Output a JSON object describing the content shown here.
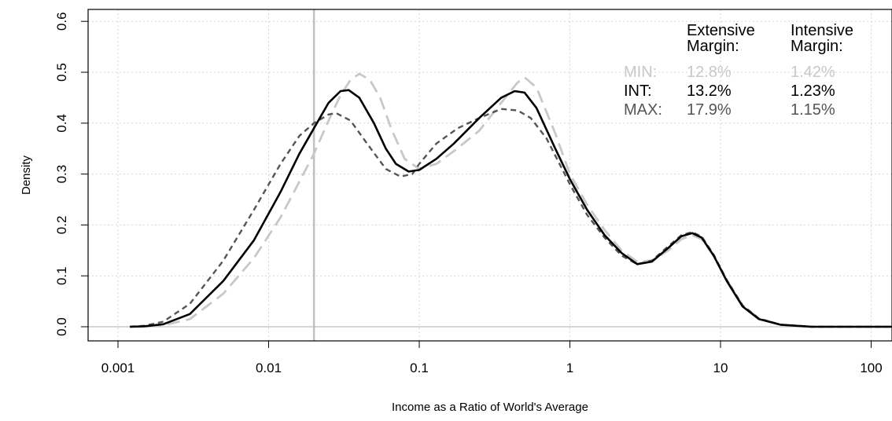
{
  "chart_data": {
    "type": "line",
    "xlabel": "Income as a Ratio of World's Average",
    "ylabel": "Density",
    "x_scale": "log10",
    "xlim": [
      0.001,
      140
    ],
    "ylim": [
      0,
      0.6
    ],
    "x_ticks": [
      0.001,
      0.01,
      0.1,
      1,
      10,
      100
    ],
    "x_tick_labels": [
      "0.001",
      "0.01",
      "0.1",
      "1",
      "10",
      "100"
    ],
    "y_ticks": [
      0,
      0.1,
      0.2,
      0.3,
      0.4,
      0.5,
      0.6
    ],
    "y_tick_labels": [
      "0.0",
      "0.1",
      "0.2",
      "0.3",
      "0.4",
      "0.5",
      "0.6"
    ],
    "grid": true,
    "reference_vline_x": 0.02,
    "reference_hline_y": 0,
    "legend_placement": "top-right",
    "legend": {
      "headers": [
        "Extensive\nMargin:",
        "Intensive\nMargin:"
      ],
      "rows": [
        {
          "label": "MIN:",
          "extensive": "12.8%",
          "intensive": "1.42%",
          "color": "#c8c8c8"
        },
        {
          "label": "INT:",
          "extensive": "13.2%",
          "intensive": "1.23%",
          "color": "#000000"
        },
        {
          "label": "MAX:",
          "extensive": "17.9%",
          "intensive": "1.15%",
          "color": "#555555"
        }
      ]
    },
    "series": [
      {
        "style": "solid",
        "color": "#000000",
        "points": [
          [
            0.0012,
            0
          ],
          [
            0.0015,
            0.001
          ],
          [
            0.002,
            0.005
          ],
          [
            0.003,
            0.025
          ],
          [
            0.005,
            0.09
          ],
          [
            0.008,
            0.17
          ],
          [
            0.012,
            0.265
          ],
          [
            0.016,
            0.34
          ],
          [
            0.02,
            0.39
          ],
          [
            0.025,
            0.44
          ],
          [
            0.03,
            0.463
          ],
          [
            0.034,
            0.465
          ],
          [
            0.04,
            0.45
          ],
          [
            0.05,
            0.4
          ],
          [
            0.06,
            0.35
          ],
          [
            0.07,
            0.32
          ],
          [
            0.085,
            0.305
          ],
          [
            0.1,
            0.308
          ],
          [
            0.13,
            0.33
          ],
          [
            0.17,
            0.36
          ],
          [
            0.25,
            0.41
          ],
          [
            0.35,
            0.45
          ],
          [
            0.43,
            0.463
          ],
          [
            0.5,
            0.46
          ],
          [
            0.6,
            0.43
          ],
          [
            0.8,
            0.35
          ],
          [
            1,
            0.29
          ],
          [
            1.3,
            0.23
          ],
          [
            1.7,
            0.18
          ],
          [
            2.2,
            0.145
          ],
          [
            2.8,
            0.123
          ],
          [
            3.5,
            0.128
          ],
          [
            4.5,
            0.155
          ],
          [
            5.5,
            0.178
          ],
          [
            6.5,
            0.184
          ],
          [
            7.5,
            0.175
          ],
          [
            9,
            0.14
          ],
          [
            11,
            0.09
          ],
          [
            14,
            0.04
          ],
          [
            18,
            0.015
          ],
          [
            25,
            0.004
          ],
          [
            40,
            0
          ],
          [
            140,
            0
          ]
        ]
      },
      {
        "style": "dashed",
        "color": "#555555",
        "points": [
          [
            0.0012,
            0
          ],
          [
            0.0015,
            0.002
          ],
          [
            0.002,
            0.01
          ],
          [
            0.003,
            0.045
          ],
          [
            0.005,
            0.13
          ],
          [
            0.008,
            0.23
          ],
          [
            0.012,
            0.32
          ],
          [
            0.016,
            0.375
          ],
          [
            0.02,
            0.4
          ],
          [
            0.025,
            0.417
          ],
          [
            0.028,
            0.42
          ],
          [
            0.035,
            0.405
          ],
          [
            0.045,
            0.36
          ],
          [
            0.06,
            0.31
          ],
          [
            0.075,
            0.295
          ],
          [
            0.09,
            0.3
          ],
          [
            0.1,
            0.32
          ],
          [
            0.13,
            0.36
          ],
          [
            0.18,
            0.39
          ],
          [
            0.25,
            0.41
          ],
          [
            0.35,
            0.428
          ],
          [
            0.45,
            0.425
          ],
          [
            0.55,
            0.41
          ],
          [
            0.7,
            0.37
          ],
          [
            1,
            0.28
          ],
          [
            1.3,
            0.22
          ],
          [
            1.7,
            0.175
          ],
          [
            2.2,
            0.14
          ],
          [
            2.8,
            0.123
          ],
          [
            3.5,
            0.13
          ],
          [
            4.5,
            0.158
          ],
          [
            5.5,
            0.18
          ],
          [
            6.5,
            0.186
          ],
          [
            7.5,
            0.177
          ],
          [
            9,
            0.142
          ],
          [
            11,
            0.092
          ],
          [
            14,
            0.042
          ],
          [
            18,
            0.016
          ],
          [
            25,
            0.004
          ],
          [
            40,
            0
          ],
          [
            140,
            0
          ]
        ]
      },
      {
        "style": "longdash",
        "color": "#c8c8c8",
        "points": [
          [
            0.0012,
            0
          ],
          [
            0.0015,
            0.0005
          ],
          [
            0.002,
            0.003
          ],
          [
            0.003,
            0.015
          ],
          [
            0.005,
            0.065
          ],
          [
            0.008,
            0.135
          ],
          [
            0.012,
            0.215
          ],
          [
            0.016,
            0.285
          ],
          [
            0.02,
            0.34
          ],
          [
            0.025,
            0.405
          ],
          [
            0.03,
            0.455
          ],
          [
            0.035,
            0.485
          ],
          [
            0.04,
            0.497
          ],
          [
            0.047,
            0.485
          ],
          [
            0.055,
            0.45
          ],
          [
            0.065,
            0.39
          ],
          [
            0.08,
            0.33
          ],
          [
            0.1,
            0.31
          ],
          [
            0.13,
            0.32
          ],
          [
            0.17,
            0.345
          ],
          [
            0.25,
            0.385
          ],
          [
            0.35,
            0.44
          ],
          [
            0.45,
            0.48
          ],
          [
            0.5,
            0.49
          ],
          [
            0.6,
            0.47
          ],
          [
            0.8,
            0.38
          ],
          [
            1,
            0.3
          ],
          [
            1.3,
            0.24
          ],
          [
            1.7,
            0.19
          ],
          [
            2.2,
            0.15
          ],
          [
            2.8,
            0.128
          ],
          [
            3.5,
            0.13
          ],
          [
            4.5,
            0.15
          ],
          [
            5.5,
            0.172
          ],
          [
            6.5,
            0.18
          ],
          [
            7.5,
            0.172
          ],
          [
            9,
            0.14
          ],
          [
            11,
            0.092
          ],
          [
            14,
            0.042
          ],
          [
            18,
            0.016
          ],
          [
            25,
            0.004
          ],
          [
            40,
            0
          ],
          [
            140,
            0
          ]
        ]
      }
    ]
  }
}
